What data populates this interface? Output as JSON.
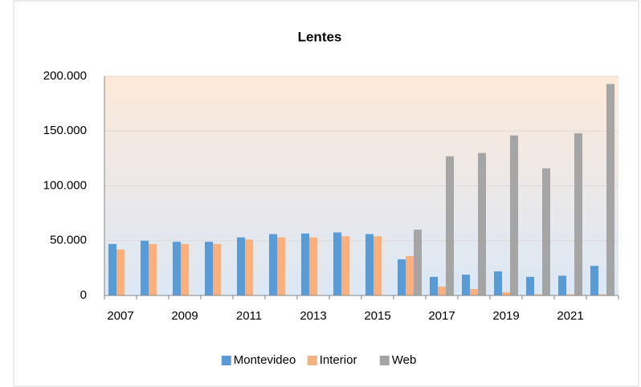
{
  "chart_data": {
    "type": "bar",
    "title": "Lentes",
    "categories": [
      "2007",
      null,
      "2009",
      null,
      "2011",
      null,
      "2013",
      null,
      "2015",
      null,
      "2017",
      null,
      "2019",
      null,
      "2021",
      null
    ],
    "series": [
      {
        "name": "Montevideo",
        "color": "#5b9bd5",
        "values": [
          47000,
          50000,
          49000,
          49000,
          53000,
          56000,
          56500,
          57500,
          56000,
          33000,
          17000,
          19000,
          22000,
          17000,
          18000,
          27000
        ]
      },
      {
        "name": "Interior",
        "color": "#f4b183",
        "values": [
          42000,
          47000,
          47000,
          47000,
          51000,
          53000,
          53000,
          54000,
          54000,
          36000,
          8000,
          6000,
          3000,
          1000,
          1000,
          1000
        ]
      },
      {
        "name": "Web",
        "color": "#a5a5a5",
        "values": [
          0,
          0,
          0,
          0,
          0,
          0,
          0,
          0,
          0,
          60000,
          127000,
          130000,
          146000,
          116000,
          148000,
          193000
        ]
      }
    ],
    "ylim": [
      0,
      200000
    ],
    "yticks": [
      0,
      {
        "value": 50000,
        "label": "50.000"
      },
      {
        "value": 100000,
        "label": "100.000"
      },
      {
        "value": 150000,
        "label": "150.000"
      },
      {
        "value": 200000,
        "label": "200.000"
      }
    ],
    "grid": true,
    "legend": "bottom"
  }
}
